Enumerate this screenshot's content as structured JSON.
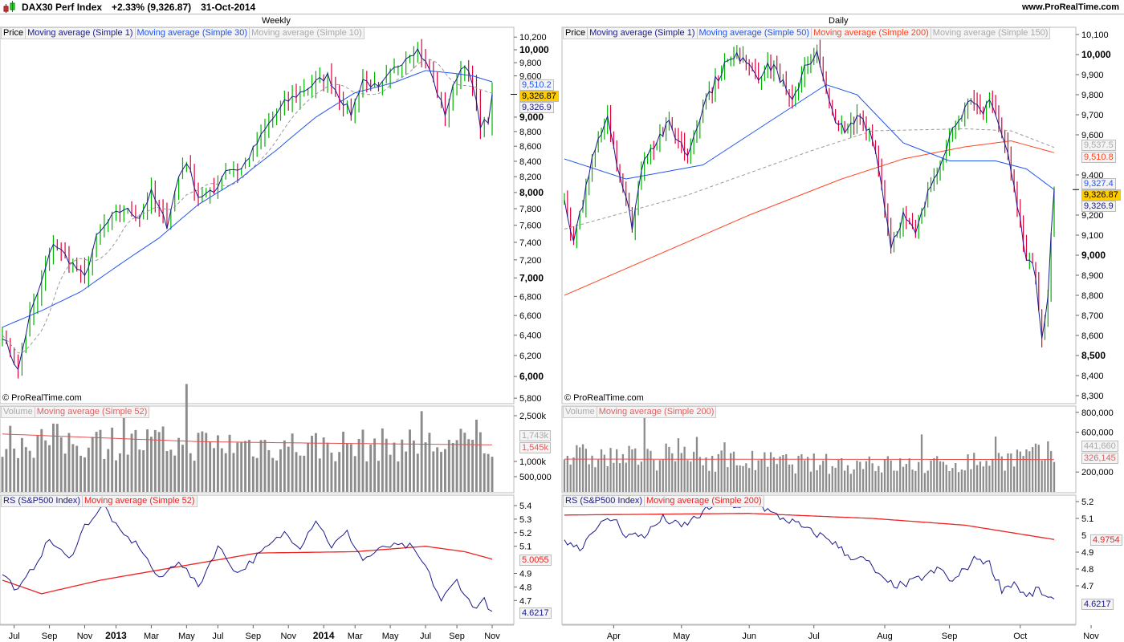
{
  "header": {
    "instrument": "DAX30 Perf Index",
    "change": "+2.33% (9,326.87)",
    "date": "31-Oct-2014",
    "site": "www.ProRealTime.com",
    "icon": "candlestick-icon"
  },
  "colors": {
    "up": "#00b400",
    "down": "#e0003c",
    "ma1": "#1a1a8c",
    "blue": "#2255ee",
    "red": "#ee2222",
    "orange": "#ff4422",
    "grey": "#999999",
    "vol": "#8c8c8c",
    "last": "#ffcc00"
  },
  "weekly": {
    "title": "Weekly",
    "copyright": "© ProRealTime.com",
    "legend": [
      "Price",
      "Moving average (Simple 1)",
      "Moving average (Simple 30)",
      "Moving average (Simple 10)"
    ],
    "vol_legend": [
      "Volume",
      "Moving average (Simple 52)"
    ],
    "rs_legend": [
      "RS (S&P500 Index)",
      "Moving average (Simple 52)"
    ],
    "tags": {
      "ma30": "9,510.2",
      "ma10": "9,326.9",
      "last": "9,326.87",
      "vol": "1,743k",
      "vol_ma": "1,545k",
      "rs_ma": "5.0055",
      "rs": "4.6217"
    },
    "price_ticks": [
      {
        "v": 10200,
        "l": "10,200"
      },
      {
        "v": 10000,
        "l": "10,000",
        "b": 1
      },
      {
        "v": 9800,
        "l": "9,800"
      },
      {
        "v": 9600,
        "l": "9,600"
      },
      {
        "v": 9000,
        "l": "9,000",
        "b": 1
      },
      {
        "v": 8800,
        "l": "8,800"
      },
      {
        "v": 8600,
        "l": "8,600"
      },
      {
        "v": 8400,
        "l": "8,400"
      },
      {
        "v": 8200,
        "l": "8,200"
      },
      {
        "v": 8000,
        "l": "8,000",
        "b": 1
      },
      {
        "v": 7800,
        "l": "7,800"
      },
      {
        "v": 7600,
        "l": "7,600"
      },
      {
        "v": 7400,
        "l": "7,400"
      },
      {
        "v": 7200,
        "l": "7,200"
      },
      {
        "v": 7000,
        "l": "7,000",
        "b": 1
      },
      {
        "v": 6800,
        "l": "6,800"
      },
      {
        "v": 6600,
        "l": "6,600"
      },
      {
        "v": 6400,
        "l": "6,400"
      },
      {
        "v": 6200,
        "l": "6,200"
      },
      {
        "v": 6000,
        "l": "6,000",
        "b": 1
      },
      {
        "v": 5800,
        "l": "5,800"
      }
    ],
    "vol_ticks": [
      {
        "v": 2500,
        "l": "2,500k"
      },
      {
        "v": 1000,
        "l": "1,000k"
      },
      {
        "v": 500,
        "l": "500,000"
      }
    ],
    "rs_ticks": [
      5.4,
      5.3,
      5.2,
      5.1,
      4.9,
      4.8,
      4.7
    ],
    "x_labels": [
      {
        "w": 3,
        "l": "Jul"
      },
      {
        "w": 12,
        "l": "Sep"
      },
      {
        "w": 21,
        "l": "Nov"
      },
      {
        "w": 29,
        "l": "2013",
        "b": 1
      },
      {
        "w": 38,
        "l": "Mar"
      },
      {
        "w": 47,
        "l": "May"
      },
      {
        "w": 55,
        "l": "Jul"
      },
      {
        "w": 64,
        "l": "Sep"
      },
      {
        "w": 73,
        "l": "Nov"
      },
      {
        "w": 82,
        "l": "2014",
        "b": 1
      },
      {
        "w": 90,
        "l": "Mar"
      },
      {
        "w": 99,
        "l": "May"
      },
      {
        "w": 108,
        "l": "Jul"
      },
      {
        "w": 116,
        "l": "Sep"
      },
      {
        "w": 125,
        "l": "Nov"
      }
    ]
  },
  "daily": {
    "title": "Daily",
    "copyright": "© ProRealTime.com",
    "legend": [
      "Price",
      "Moving average (Simple 1)",
      "Moving average (Simple 50)",
      "Moving average (Simple 200)",
      "Moving average (Simple 150)"
    ],
    "vol_legend": [
      "Volume",
      "Moving average (Simple 200)"
    ],
    "rs_legend": [
      "RS (S&P500 Index)",
      "Moving average (Simple 200)"
    ],
    "tags": {
      "ma150": "9,537.5",
      "ma200": "9,510.8",
      "ma50": "9,327.4",
      "ma1": "9,326.9",
      "last": "9,326.87",
      "vol": "441,660",
      "vol_ma": "326,145",
      "rs_ma": "4.9754",
      "rs": "4.6217"
    },
    "price_ticks": [
      {
        "v": 10100,
        "l": "10,100"
      },
      {
        "v": 10000,
        "l": "10,000",
        "b": 1
      },
      {
        "v": 9900,
        "l": "9,900"
      },
      {
        "v": 9800,
        "l": "9,800"
      },
      {
        "v": 9700,
        "l": "9,700"
      },
      {
        "v": 9600,
        "l": "9,600"
      },
      {
        "v": 9400,
        "l": "9,400"
      },
      {
        "v": 9200,
        "l": "9,200"
      },
      {
        "v": 9100,
        "l": "9,100"
      },
      {
        "v": 9000,
        "l": "9,000",
        "b": 1
      },
      {
        "v": 8900,
        "l": "8,900"
      },
      {
        "v": 8800,
        "l": "8,800"
      },
      {
        "v": 8700,
        "l": "8,700"
      },
      {
        "v": 8600,
        "l": "8,600"
      },
      {
        "v": 8500,
        "l": "8,500",
        "b": 1
      },
      {
        "v": 8400,
        "l": "8,400"
      },
      {
        "v": 8300,
        "l": "8,300"
      }
    ],
    "vol_ticks": [
      {
        "v": 800,
        "l": "800,000"
      },
      {
        "v": 600,
        "l": "600,000"
      },
      {
        "v": 200,
        "l": "200,000"
      }
    ],
    "rs_ticks": [
      5.2,
      5.1,
      4.9,
      4.8,
      4.7
    ],
    "rs_tick5": "5",
    "x_labels": [
      {
        "w": 16,
        "l": "Apr"
      },
      {
        "w": 38,
        "l": "May"
      },
      {
        "w": 60,
        "l": "Jun"
      },
      {
        "w": 81,
        "l": "Jul"
      },
      {
        "w": 104,
        "l": "Aug"
      },
      {
        "w": 125,
        "l": "Sep"
      },
      {
        "w": 148,
        "l": "Oct"
      },
      {
        "w": 171,
        "l": "Nov"
      }
    ]
  },
  "chart_data": [
    {
      "type": "ohlc",
      "name": "DAX30 weekly",
      "n": 126,
      "close_anchors": [
        [
          0,
          6400
        ],
        [
          4,
          6050
        ],
        [
          7,
          6600
        ],
        [
          10,
          6950
        ],
        [
          13,
          7400
        ],
        [
          17,
          7200
        ],
        [
          21,
          7000
        ],
        [
          24,
          7450
        ],
        [
          28,
          7700
        ],
        [
          31,
          7800
        ],
        [
          35,
          7700
        ],
        [
          38,
          8000
        ],
        [
          42,
          7600
        ],
        [
          45,
          8200
        ],
        [
          47,
          8400
        ],
        [
          50,
          7950
        ],
        [
          54,
          8000
        ],
        [
          57,
          8300
        ],
        [
          61,
          8300
        ],
        [
          64,
          8550
        ],
        [
          68,
          8900
        ],
        [
          72,
          9200
        ],
        [
          76,
          9350
        ],
        [
          80,
          9500
        ],
        [
          83,
          9600
        ],
        [
          86,
          9300
        ],
        [
          89,
          9050
        ],
        [
          92,
          9550
        ],
        [
          96,
          9400
        ],
        [
          100,
          9700
        ],
        [
          104,
          9950
        ],
        [
          106,
          10000
        ],
        [
          109,
          9700
        ],
        [
          111,
          9350
        ],
        [
          113,
          9050
        ],
        [
          116,
          9600
        ],
        [
          118,
          9800
        ],
        [
          120,
          9450
        ],
        [
          122,
          8900
        ],
        [
          124,
          8950
        ],
        [
          125,
          9327
        ]
      ],
      "ma30_anchors": [
        [
          0,
          6480
        ],
        [
          10,
          6650
        ],
        [
          20,
          6850
        ],
        [
          30,
          7150
        ],
        [
          40,
          7450
        ],
        [
          50,
          7850
        ],
        [
          60,
          8150
        ],
        [
          70,
          8550
        ],
        [
          80,
          9000
        ],
        [
          90,
          9350
        ],
        [
          100,
          9500
        ],
        [
          108,
          9680
        ],
        [
          115,
          9640
        ],
        [
          120,
          9600
        ],
        [
          125,
          9510
        ]
      ],
      "volume_k_level": [
        [
          0,
          1800
        ],
        [
          30,
          1700
        ],
        [
          55,
          1650
        ],
        [
          80,
          1600
        ],
        [
          125,
          1650
        ]
      ],
      "volume_ma52_k": [
        [
          0,
          1900
        ],
        [
          20,
          1800
        ],
        [
          50,
          1650
        ],
        [
          80,
          1600
        ],
        [
          125,
          1545
        ]
      ],
      "rs_anchors": [
        [
          0,
          4.9
        ],
        [
          4,
          4.77
        ],
        [
          8,
          4.95
        ],
        [
          12,
          5.15
        ],
        [
          17,
          5.0
        ],
        [
          21,
          5.25
        ],
        [
          26,
          5.4
        ],
        [
          30,
          5.2
        ],
        [
          35,
          5.1
        ],
        [
          40,
          4.85
        ],
        [
          45,
          5.0
        ],
        [
          50,
          4.8
        ],
        [
          55,
          5.1
        ],
        [
          60,
          4.9
        ],
        [
          66,
          5.05
        ],
        [
          72,
          5.2
        ],
        [
          76,
          5.1
        ],
        [
          80,
          5.3
        ],
        [
          84,
          5.1
        ],
        [
          88,
          5.2
        ],
        [
          92,
          5.0
        ],
        [
          98,
          5.1
        ],
        [
          104,
          5.1
        ],
        [
          108,
          4.95
        ],
        [
          112,
          4.7
        ],
        [
          116,
          4.85
        ],
        [
          120,
          4.65
        ],
        [
          123,
          4.7
        ],
        [
          125,
          4.62
        ]
      ],
      "rs_ma_anchors": [
        [
          0,
          4.85
        ],
        [
          10,
          4.75
        ],
        [
          25,
          4.85
        ],
        [
          45,
          4.95
        ],
        [
          65,
          5.05
        ],
        [
          90,
          5.06
        ],
        [
          108,
          5.1
        ],
        [
          118,
          5.06
        ],
        [
          125,
          5.0055
        ]
      ],
      "x_range": [
        "Jun-2012",
        "Oct-2014"
      ],
      "ylim": [
        5800,
        10200
      ]
    },
    {
      "type": "ohlc",
      "name": "DAX30 daily",
      "n": 160,
      "close_anchors": [
        [
          0,
          9250
        ],
        [
          3,
          9050
        ],
        [
          10,
          9550
        ],
        [
          14,
          9700
        ],
        [
          18,
          9400
        ],
        [
          22,
          9150
        ],
        [
          26,
          9500
        ],
        [
          34,
          9650
        ],
        [
          40,
          9500
        ],
        [
          45,
          9750
        ],
        [
          52,
          9950
        ],
        [
          58,
          10000
        ],
        [
          63,
          9900
        ],
        [
          68,
          9950
        ],
        [
          74,
          9750
        ],
        [
          78,
          9950
        ],
        [
          82,
          10000
        ],
        [
          86,
          9750
        ],
        [
          91,
          9600
        ],
        [
          96,
          9700
        ],
        [
          100,
          9600
        ],
        [
          103,
          9350
        ],
        [
          106,
          9050
        ],
        [
          110,
          9200
        ],
        [
          114,
          9100
        ],
        [
          119,
          9350
        ],
        [
          124,
          9550
        ],
        [
          128,
          9700
        ],
        [
          132,
          9750
        ],
        [
          136,
          9700
        ],
        [
          138,
          9800
        ],
        [
          141,
          9650
        ],
        [
          144,
          9500
        ],
        [
          147,
          9250
        ],
        [
          150,
          9000
        ],
        [
          153,
          8900
        ],
        [
          155,
          8600
        ],
        [
          157,
          8800
        ],
        [
          158,
          9100
        ],
        [
          159,
          9327
        ]
      ],
      "ma50_anchors": [
        [
          0,
          9480
        ],
        [
          20,
          9380
        ],
        [
          45,
          9450
        ],
        [
          70,
          9700
        ],
        [
          85,
          9850
        ],
        [
          95,
          9800
        ],
        [
          110,
          9560
        ],
        [
          125,
          9470
        ],
        [
          140,
          9470
        ],
        [
          150,
          9430
        ],
        [
          159,
          9327
        ]
      ],
      "ma200_anchors": [
        [
          0,
          8800
        ],
        [
          30,
          9000
        ],
        [
          60,
          9200
        ],
        [
          90,
          9380
        ],
        [
          110,
          9480
        ],
        [
          130,
          9540
        ],
        [
          145,
          9570
        ],
        [
          159,
          9511
        ]
      ],
      "ma150_anchors": [
        [
          0,
          9130
        ],
        [
          40,
          9300
        ],
        [
          80,
          9520
        ],
        [
          100,
          9620
        ],
        [
          130,
          9630
        ],
        [
          145,
          9620
        ],
        [
          159,
          9537
        ]
      ],
      "volume_k_level": [
        [
          0,
          380
        ],
        [
          40,
          350
        ],
        [
          80,
          300
        ],
        [
          120,
          280
        ],
        [
          159,
          400
        ]
      ],
      "volume_ma200_k": [
        [
          0,
          330
        ],
        [
          159,
          326
        ]
      ],
      "rs_anchors": [
        [
          0,
          4.98
        ],
        [
          5,
          4.92
        ],
        [
          10,
          5.05
        ],
        [
          16,
          5.1
        ],
        [
          20,
          5.0
        ],
        [
          26,
          5.0
        ],
        [
          32,
          5.1
        ],
        [
          38,
          5.05
        ],
        [
          44,
          5.12
        ],
        [
          50,
          5.2
        ],
        [
          56,
          5.15
        ],
        [
          62,
          5.2
        ],
        [
          68,
          5.12
        ],
        [
          74,
          5.08
        ],
        [
          80,
          5.02
        ],
        [
          86,
          4.98
        ],
        [
          92,
          4.88
        ],
        [
          98,
          4.85
        ],
        [
          104,
          4.72
        ],
        [
          110,
          4.7
        ],
        [
          116,
          4.75
        ],
        [
          122,
          4.8
        ],
        [
          126,
          4.72
        ],
        [
          130,
          4.8
        ],
        [
          134,
          4.87
        ],
        [
          138,
          4.83
        ],
        [
          142,
          4.68
        ],
        [
          146,
          4.72
        ],
        [
          150,
          4.63
        ],
        [
          154,
          4.68
        ],
        [
          157,
          4.62
        ],
        [
          159,
          4.6217
        ]
      ],
      "rs_ma_anchors": [
        [
          0,
          5.12
        ],
        [
          60,
          5.13
        ],
        [
          100,
          5.1
        ],
        [
          130,
          5.06
        ],
        [
          159,
          4.975
        ]
      ],
      "x_range": [
        "Mar-2014",
        "31-Oct-2014"
      ],
      "ylim": [
        8300,
        10100
      ]
    }
  ]
}
